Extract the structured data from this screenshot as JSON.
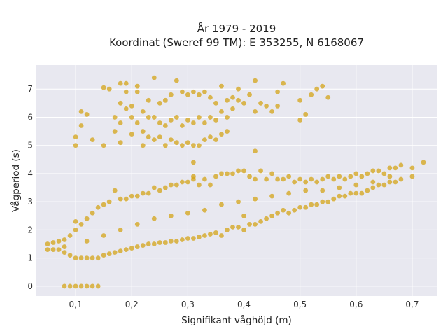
{
  "chart_data": {
    "type": "scatter",
    "title_lines": [
      "År 1979 - 2019",
      "Koordinat (Sweref 99 TM): E 353255, N 6168067"
    ],
    "xlabel": "Signifikant våghöjd (m)",
    "ylabel": "Vågperiod (s)",
    "xlim": [
      0.03,
      0.745
    ],
    "ylim": [
      -0.35,
      7.85
    ],
    "xticks": [
      {
        "value": 0.1,
        "label": "0,1"
      },
      {
        "value": 0.2,
        "label": "0,2"
      },
      {
        "value": 0.3,
        "label": "0,3"
      },
      {
        "value": 0.4,
        "label": "0,4"
      },
      {
        "value": 0.5,
        "label": "0,5"
      },
      {
        "value": 0.6,
        "label": "0,6"
      },
      {
        "value": 0.7,
        "label": "0,7"
      }
    ],
    "yticks": [
      {
        "value": 0,
        "label": "0"
      },
      {
        "value": 1,
        "label": "1"
      },
      {
        "value": 2,
        "label": "2"
      },
      {
        "value": 3,
        "label": "3"
      },
      {
        "value": 4,
        "label": "4"
      },
      {
        "value": 5,
        "label": "5"
      },
      {
        "value": 6,
        "label": "6"
      },
      {
        "value": 7,
        "label": "7"
      }
    ],
    "grid": true,
    "legend": "none",
    "colors": {
      "point": "#d4a418",
      "plot_background": "#e8e8f0",
      "grid": "#ffffff"
    },
    "series": [
      {
        "points": [
          [
            0.08,
            0
          ],
          [
            0.09,
            0
          ],
          [
            0.1,
            0
          ],
          [
            0.11,
            0
          ],
          [
            0.12,
            0
          ],
          [
            0.13,
            0
          ],
          [
            0.14,
            0
          ],
          [
            0.05,
            1.3
          ],
          [
            0.05,
            1.5
          ],
          [
            0.06,
            1.3
          ],
          [
            0.06,
            1.55
          ],
          [
            0.07,
            1.3
          ],
          [
            0.07,
            1.6
          ],
          [
            0.08,
            1.2
          ],
          [
            0.08,
            1.65
          ],
          [
            0.09,
            1.1
          ],
          [
            0.09,
            1.8
          ],
          [
            0.1,
            1.0
          ],
          [
            0.1,
            2.0
          ],
          [
            0.1,
            2.3
          ],
          [
            0.11,
            1.0
          ],
          [
            0.11,
            2.2
          ],
          [
            0.12,
            1.0
          ],
          [
            0.12,
            2.4
          ],
          [
            0.13,
            1.0
          ],
          [
            0.13,
            2.6
          ],
          [
            0.14,
            1.0
          ],
          [
            0.14,
            2.8
          ],
          [
            0.15,
            1.1
          ],
          [
            0.15,
            2.9
          ],
          [
            0.16,
            1.15
          ],
          [
            0.16,
            3.0
          ],
          [
            0.17,
            1.2
          ],
          [
            0.17,
            3.4
          ],
          [
            0.18,
            1.25
          ],
          [
            0.18,
            3.1
          ],
          [
            0.19,
            1.3
          ],
          [
            0.19,
            3.1
          ],
          [
            0.2,
            1.35
          ],
          [
            0.2,
            3.2
          ],
          [
            0.21,
            1.4
          ],
          [
            0.21,
            3.2
          ],
          [
            0.22,
            1.45
          ],
          [
            0.22,
            3.3
          ],
          [
            0.23,
            1.5
          ],
          [
            0.23,
            3.3
          ],
          [
            0.24,
            1.5
          ],
          [
            0.24,
            3.5
          ],
          [
            0.25,
            1.55
          ],
          [
            0.25,
            3.4
          ],
          [
            0.26,
            1.55
          ],
          [
            0.26,
            3.5
          ],
          [
            0.27,
            1.6
          ],
          [
            0.27,
            3.6
          ],
          [
            0.28,
            1.6
          ],
          [
            0.28,
            3.6
          ],
          [
            0.29,
            1.65
          ],
          [
            0.29,
            3.7
          ],
          [
            0.3,
            1.7
          ],
          [
            0.3,
            3.7
          ],
          [
            0.31,
            1.7
          ],
          [
            0.31,
            3.8
          ],
          [
            0.32,
            1.75
          ],
          [
            0.32,
            3.6
          ],
          [
            0.33,
            1.8
          ],
          [
            0.33,
            3.8
          ],
          [
            0.34,
            1.85
          ],
          [
            0.34,
            3.6
          ],
          [
            0.35,
            1.9
          ],
          [
            0.35,
            3.9
          ],
          [
            0.36,
            1.8
          ],
          [
            0.36,
            4.0
          ],
          [
            0.37,
            2.0
          ],
          [
            0.37,
            4.0
          ],
          [
            0.38,
            2.1
          ],
          [
            0.38,
            4.0
          ],
          [
            0.39,
            2.1
          ],
          [
            0.39,
            4.1
          ],
          [
            0.4,
            2.0
          ],
          [
            0.4,
            4.1
          ],
          [
            0.41,
            2.2
          ],
          [
            0.41,
            3.9
          ],
          [
            0.42,
            2.2
          ],
          [
            0.42,
            3.8
          ],
          [
            0.43,
            2.3
          ],
          [
            0.43,
            4.1
          ],
          [
            0.44,
            2.4
          ],
          [
            0.44,
            3.8
          ],
          [
            0.45,
            2.5
          ],
          [
            0.45,
            4.0
          ],
          [
            0.46,
            2.6
          ],
          [
            0.46,
            3.8
          ],
          [
            0.47,
            2.7
          ],
          [
            0.47,
            3.8
          ],
          [
            0.48,
            2.6
          ],
          [
            0.48,
            3.9
          ],
          [
            0.49,
            2.7
          ],
          [
            0.49,
            3.7
          ],
          [
            0.5,
            2.8
          ],
          [
            0.5,
            3.8
          ],
          [
            0.51,
            2.8
          ],
          [
            0.51,
            3.7
          ],
          [
            0.52,
            2.9
          ],
          [
            0.52,
            3.8
          ],
          [
            0.53,
            2.9
          ],
          [
            0.53,
            3.7
          ],
          [
            0.54,
            3.0
          ],
          [
            0.54,
            3.8
          ],
          [
            0.55,
            3.0
          ],
          [
            0.55,
            3.9
          ],
          [
            0.56,
            3.1
          ],
          [
            0.56,
            3.8
          ],
          [
            0.57,
            3.2
          ],
          [
            0.57,
            3.9
          ],
          [
            0.58,
            3.2
          ],
          [
            0.58,
            3.8
          ],
          [
            0.59,
            3.3
          ],
          [
            0.59,
            3.9
          ],
          [
            0.6,
            3.3
          ],
          [
            0.6,
            4.0
          ],
          [
            0.61,
            3.3
          ],
          [
            0.61,
            3.9
          ],
          [
            0.62,
            3.4
          ],
          [
            0.62,
            4.0
          ],
          [
            0.63,
            3.5
          ],
          [
            0.63,
            4.1
          ],
          [
            0.64,
            3.6
          ],
          [
            0.64,
            4.1
          ],
          [
            0.65,
            3.6
          ],
          [
            0.65,
            4.0
          ],
          [
            0.66,
            3.7
          ],
          [
            0.66,
            4.2
          ],
          [
            0.67,
            3.7
          ],
          [
            0.67,
            4.2
          ],
          [
            0.68,
            3.8
          ],
          [
            0.68,
            4.3
          ],
          [
            0.7,
            3.9
          ],
          [
            0.7,
            4.2
          ],
          [
            0.72,
            4.4
          ],
          [
            0.08,
            1.4
          ],
          [
            0.12,
            1.6
          ],
          [
            0.15,
            1.8
          ],
          [
            0.18,
            2.0
          ],
          [
            0.21,
            2.2
          ],
          [
            0.24,
            2.4
          ],
          [
            0.27,
            2.5
          ],
          [
            0.3,
            2.6
          ],
          [
            0.33,
            2.7
          ],
          [
            0.36,
            2.9
          ],
          [
            0.39,
            3.0
          ],
          [
            0.42,
            3.1
          ],
          [
            0.45,
            3.2
          ],
          [
            0.48,
            3.3
          ],
          [
            0.51,
            3.4
          ],
          [
            0.54,
            3.4
          ],
          [
            0.57,
            3.5
          ],
          [
            0.6,
            3.6
          ],
          [
            0.63,
            3.7
          ],
          [
            0.66,
            3.9
          ],
          [
            0.1,
            5.0
          ],
          [
            0.1,
            5.3
          ],
          [
            0.11,
            5.7
          ],
          [
            0.11,
            6.2
          ],
          [
            0.12,
            6.1
          ],
          [
            0.13,
            5.2
          ],
          [
            0.15,
            5.0
          ],
          [
            0.15,
            7.05
          ],
          [
            0.16,
            7.0
          ],
          [
            0.17,
            5.5
          ],
          [
            0.17,
            6.0
          ],
          [
            0.18,
            5.1
          ],
          [
            0.18,
            5.8
          ],
          [
            0.18,
            6.5
          ],
          [
            0.18,
            7.2
          ],
          [
            0.19,
            6.3
          ],
          [
            0.19,
            6.9
          ],
          [
            0.19,
            7.2
          ],
          [
            0.2,
            5.4
          ],
          [
            0.2,
            6.0
          ],
          [
            0.2,
            6.4
          ],
          [
            0.21,
            5.8
          ],
          [
            0.21,
            6.9
          ],
          [
            0.21,
            7.1
          ],
          [
            0.22,
            5.0
          ],
          [
            0.22,
            5.5
          ],
          [
            0.22,
            6.2
          ],
          [
            0.23,
            5.3
          ],
          [
            0.23,
            6.0
          ],
          [
            0.23,
            6.6
          ],
          [
            0.24,
            5.2
          ],
          [
            0.24,
            6.0
          ],
          [
            0.24,
            7.4
          ],
          [
            0.25,
            5.3
          ],
          [
            0.25,
            5.8
          ],
          [
            0.25,
            6.5
          ],
          [
            0.26,
            5.0
          ],
          [
            0.26,
            5.7
          ],
          [
            0.26,
            6.6
          ],
          [
            0.27,
            5.2
          ],
          [
            0.27,
            5.9
          ],
          [
            0.27,
            6.8
          ],
          [
            0.28,
            5.1
          ],
          [
            0.28,
            6.0
          ],
          [
            0.28,
            7.3
          ],
          [
            0.29,
            5.0
          ],
          [
            0.29,
            5.7
          ],
          [
            0.29,
            6.9
          ],
          [
            0.3,
            5.1
          ],
          [
            0.3,
            5.9
          ],
          [
            0.3,
            6.8
          ],
          [
            0.31,
            5.0
          ],
          [
            0.31,
            5.8
          ],
          [
            0.31,
            6.9
          ],
          [
            0.32,
            5.0
          ],
          [
            0.32,
            6.0
          ],
          [
            0.32,
            6.8
          ],
          [
            0.33,
            5.2
          ],
          [
            0.33,
            5.8
          ],
          [
            0.33,
            6.9
          ],
          [
            0.34,
            5.3
          ],
          [
            0.34,
            6.0
          ],
          [
            0.34,
            6.7
          ],
          [
            0.35,
            5.2
          ],
          [
            0.35,
            5.9
          ],
          [
            0.35,
            6.5
          ],
          [
            0.36,
            5.4
          ],
          [
            0.36,
            6.2
          ],
          [
            0.36,
            7.1
          ],
          [
            0.37,
            5.5
          ],
          [
            0.37,
            6.0
          ],
          [
            0.37,
            6.6
          ],
          [
            0.38,
            6.3
          ],
          [
            0.38,
            6.7
          ],
          [
            0.39,
            6.6
          ],
          [
            0.39,
            7.0
          ],
          [
            0.4,
            6.5
          ],
          [
            0.41,
            6.8
          ],
          [
            0.42,
            6.2
          ],
          [
            0.42,
            7.3
          ],
          [
            0.43,
            6.5
          ],
          [
            0.44,
            6.4
          ],
          [
            0.45,
            6.2
          ],
          [
            0.46,
            6.4
          ],
          [
            0.46,
            6.9
          ],
          [
            0.47,
            7.2
          ],
          [
            0.5,
            5.9
          ],
          [
            0.5,
            6.6
          ],
          [
            0.51,
            6.1
          ],
          [
            0.52,
            6.8
          ],
          [
            0.53,
            7.0
          ],
          [
            0.54,
            7.1
          ],
          [
            0.55,
            6.7
          ],
          [
            0.42,
            4.8
          ],
          [
            0.31,
            4.4
          ],
          [
            0.31,
            3.9
          ],
          [
            0.4,
            2.5
          ]
        ]
      }
    ]
  }
}
